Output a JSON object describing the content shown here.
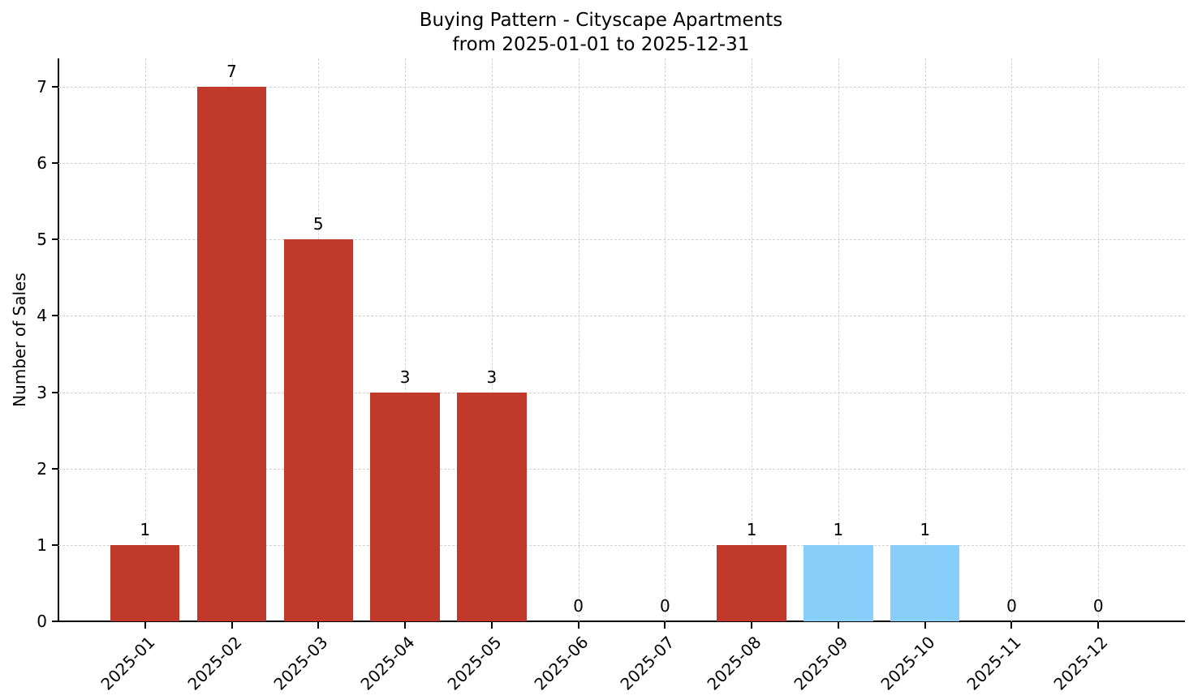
{
  "title": {
    "line1": "Buying Pattern - Cityscape Apartments",
    "line2": "from 2025-01-01 to 2025-12-31"
  },
  "chart_data": {
    "type": "bar",
    "title": "Buying Pattern - Cityscape Apartments\nfrom 2025-01-01 to 2025-12-31",
    "xlabel": "",
    "ylabel": "Number of Sales",
    "categories": [
      "2025-01",
      "2025-02",
      "2025-03",
      "2025-04",
      "2025-05",
      "2025-06",
      "2025-07",
      "2025-08",
      "2025-09",
      "2025-10",
      "2025-11",
      "2025-12"
    ],
    "values": [
      1,
      7,
      5,
      3,
      3,
      0,
      0,
      1,
      1,
      1,
      0,
      0
    ],
    "value_labels": [
      "1",
      "7",
      "5",
      "3",
      "3",
      "0",
      "0",
      "1",
      "1",
      "1",
      "0",
      "0"
    ],
    "bar_colors": [
      "#c0392b",
      "#c0392b",
      "#c0392b",
      "#c0392b",
      "#c0392b",
      "#c0392b",
      "#c0392b",
      "#c0392b",
      "#87cefa",
      "#87cefa",
      "#c0392b",
      "#c0392b"
    ],
    "yticks": [
      0,
      1,
      2,
      3,
      4,
      5,
      6,
      7
    ],
    "ylim": [
      0,
      7.37
    ],
    "xlim": [
      -1,
      12
    ],
    "bar_width": 0.8,
    "grid": {
      "visible": true,
      "style": "dashed",
      "color": "#d2d2d2",
      "axes": "both"
    },
    "legend": null,
    "colors": {
      "default_bar": "#c0392b",
      "highlight_bar": "#87cefa",
      "axis": "#000000",
      "background": "#ffffff"
    }
  }
}
